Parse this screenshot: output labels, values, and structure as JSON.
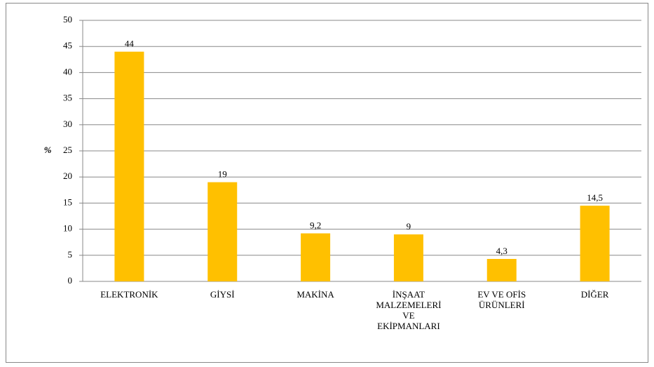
{
  "chart_data": {
    "type": "bar",
    "categories": [
      "ELEKTRONİK",
      "GİYSİ",
      "MAKİNA",
      "İNŞAAT MALZEMELERİ VE EKİPMANLARI",
      "EV VE OFİS ÜRÜNLERİ",
      "DİĞER"
    ],
    "values": [
      44,
      19,
      9.2,
      9,
      4.3,
      14.5
    ],
    "value_labels": [
      "44",
      "19",
      "9,2",
      "9",
      "4,3",
      "14,5"
    ],
    "color": "#ffc000",
    "y_label": "%",
    "ylim": [
      0,
      50
    ],
    "yticks": [
      0,
      5,
      10,
      15,
      20,
      25,
      30,
      35,
      40,
      45,
      50
    ],
    "grid": true
  }
}
